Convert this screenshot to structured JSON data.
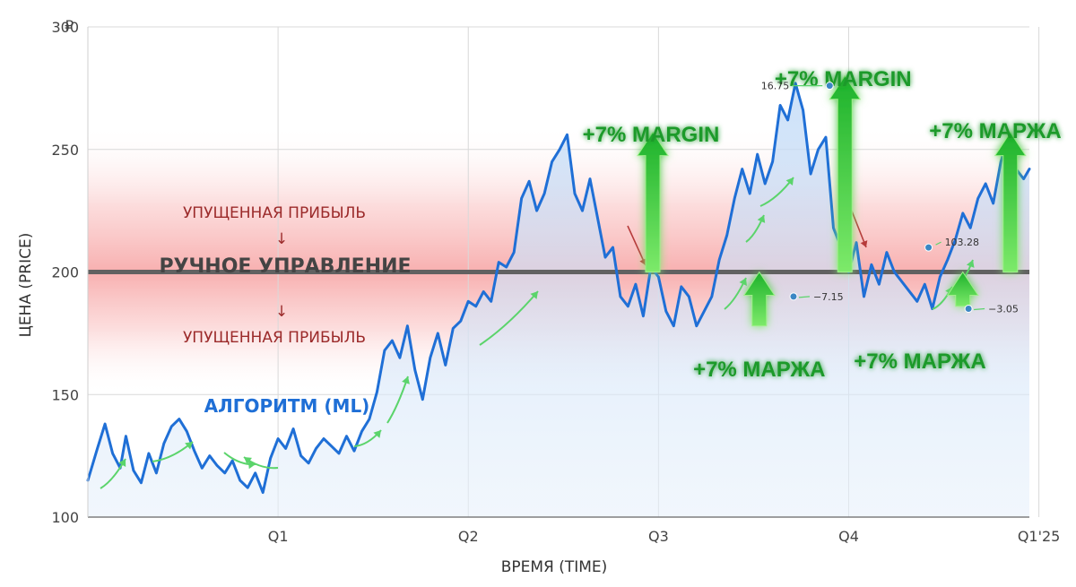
{
  "chart_data": {
    "type": "line",
    "currency_symbol": "₽",
    "xlabel": "ВРЕМЯ (TIME)",
    "ylabel": "ЦЕНА (PRICE)",
    "ylim": [
      100,
      300
    ],
    "yticks": [
      100,
      150,
      200,
      250,
      300
    ],
    "xticks": [
      {
        "label": "Q1",
        "x": 1.0
      },
      {
        "label": "Q2",
        "x": 2.0
      },
      {
        "label": "Q3",
        "x": 3.0
      },
      {
        "label": "Q4",
        "x": 4.0
      },
      {
        "label": "Q1'25",
        "x": 5.0
      }
    ],
    "xlim": [
      0.0,
      4.95
    ],
    "grid": true,
    "manual_level": 200,
    "manual_label": "РУЧНОЕ УПРАВЛЕНИЕ",
    "lost_profit_label": "УПУЩЕННАЯ ПРИБЫЛЬ",
    "lost_profit_arrow": "↓",
    "series": [
      {
        "name": "АЛГОРИТМ (ML)",
        "color": "#1f6fd6",
        "x": [
          0.0,
          0.05,
          0.09,
          0.13,
          0.17,
          0.2,
          0.24,
          0.28,
          0.32,
          0.36,
          0.4,
          0.44,
          0.48,
          0.52,
          0.56,
          0.6,
          0.64,
          0.68,
          0.72,
          0.76,
          0.8,
          0.84,
          0.88,
          0.92,
          0.96,
          1.0,
          1.04,
          1.08,
          1.12,
          1.16,
          1.2,
          1.24,
          1.28,
          1.32,
          1.36,
          1.4,
          1.44,
          1.48,
          1.52,
          1.56,
          1.6,
          1.64,
          1.68,
          1.72,
          1.76,
          1.8,
          1.84,
          1.88,
          1.92,
          1.96,
          2.0,
          2.04,
          2.08,
          2.12,
          2.16,
          2.2,
          2.24,
          2.28,
          2.32,
          2.36,
          2.4,
          2.44,
          2.48,
          2.52,
          2.56,
          2.6,
          2.64,
          2.68,
          2.72,
          2.76,
          2.8,
          2.84,
          2.88,
          2.92,
          2.96,
          3.0,
          3.04,
          3.08,
          3.12,
          3.16,
          3.2,
          3.24,
          3.28,
          3.32,
          3.36,
          3.4,
          3.44,
          3.48,
          3.52,
          3.56,
          3.6,
          3.64,
          3.68,
          3.72,
          3.76,
          3.8,
          3.84,
          3.88,
          3.92,
          3.96,
          4.0,
          4.04,
          4.08,
          4.12,
          4.16,
          4.2,
          4.24,
          4.28,
          4.32,
          4.36,
          4.4,
          4.44,
          4.48,
          4.52,
          4.56,
          4.6,
          4.64,
          4.68,
          4.72,
          4.76,
          4.8,
          4.84,
          4.88,
          4.92,
          4.95
        ],
        "y": [
          115,
          128,
          138,
          126,
          120,
          133,
          119,
          114,
          126,
          118,
          130,
          137,
          140,
          135,
          127,
          120,
          125,
          121,
          118,
          123,
          115,
          112,
          118,
          110,
          124,
          132,
          128,
          136,
          125,
          122,
          128,
          132,
          129,
          126,
          133,
          127,
          135,
          140,
          151,
          168,
          172,
          165,
          178,
          160,
          148,
          165,
          175,
          162,
          177,
          180,
          188,
          186,
          192,
          188,
          204,
          202,
          208,
          230,
          237,
          225,
          232,
          245,
          250,
          256,
          232,
          225,
          238,
          222,
          206,
          210,
          190,
          186,
          195,
          182,
          202,
          198,
          184,
          178,
          194,
          190,
          178,
          184,
          190,
          205,
          215,
          230,
          242,
          232,
          248,
          236,
          245,
          268,
          262,
          277,
          266,
          240,
          250,
          255,
          218,
          210,
          200,
          212,
          190,
          203,
          195,
          208,
          200,
          196,
          192,
          188,
          195,
          185,
          198,
          205,
          213,
          224,
          218,
          230,
          236,
          228,
          245,
          255,
          242,
          238,
          242
        ]
      }
    ],
    "margin_annotations": [
      {
        "label": "+7% MARGIN",
        "x": 2.97,
        "y_from": 200,
        "y_to": 257
      },
      {
        "label": "+7% MARGIN",
        "x": 3.98,
        "y_from": 200,
        "y_to": 280
      },
      {
        "label": "+7% МАРЖА",
        "x": 4.85,
        "y_from": 200,
        "y_to": 257
      },
      {
        "label": "+7% МАРЖА",
        "x": 3.53,
        "y_from": 178,
        "y_to": 200
      },
      {
        "label": "+7% МАРЖА",
        "x": 4.6,
        "y_from": 186,
        "y_to": 200
      }
    ],
    "point_annotations": [
      {
        "label": "16.75",
        "x": 3.9,
        "y": 276
      },
      {
        "label": "103.28",
        "x": 4.42,
        "y": 210
      },
      {
        "label": "−7.15",
        "x": 3.71,
        "y": 190
      },
      {
        "label": "−3.05",
        "x": 4.63,
        "y": 185
      }
    ]
  }
}
